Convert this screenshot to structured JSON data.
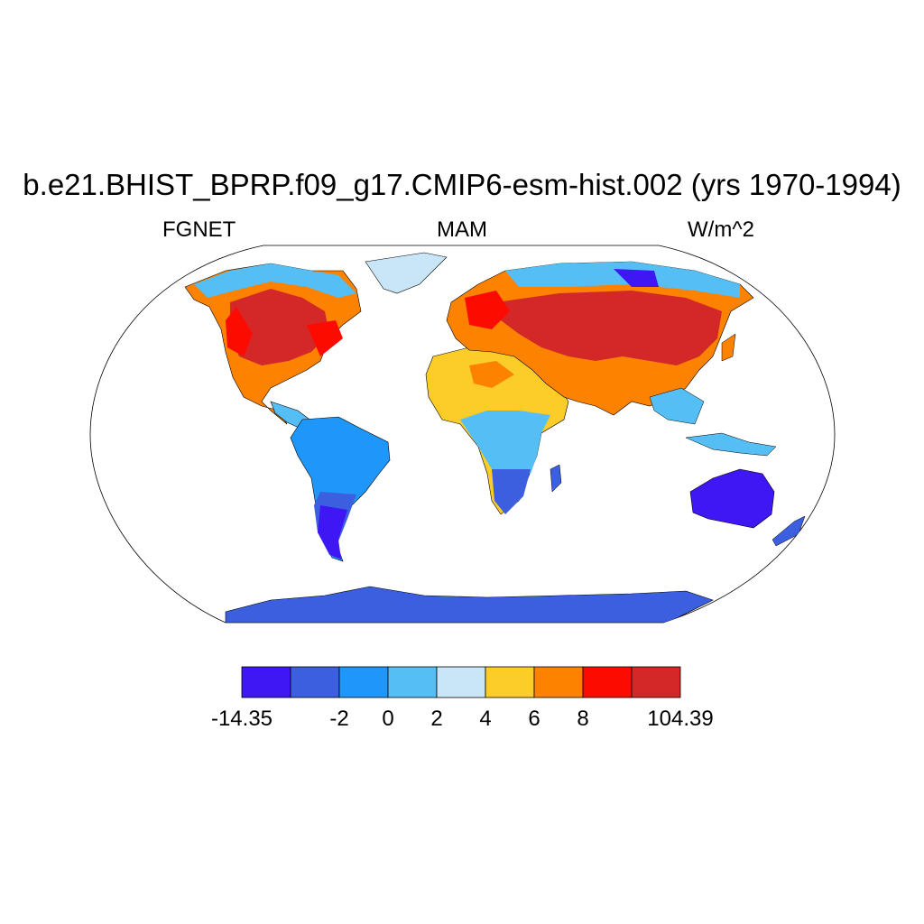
{
  "title": "b.e21.BHIST_BPRP.f09_g17.CMIP6-esm-hist.002 (yrs 1970-1994)",
  "subtitle_left": "FGNET",
  "subtitle_center": "MAM",
  "subtitle_right": "W/m^2",
  "colorbar": {
    "colors": [
      "#3f17f5",
      "#3c5fe0",
      "#1e96fa",
      "#55bef5",
      "#c8e6f8",
      "#fccc28",
      "#fc8200",
      "#fc0c00",
      "#d42828"
    ],
    "labels": [
      "-14.35",
      "-2",
      "0",
      "2",
      "4",
      "6",
      "8",
      "104.39"
    ]
  },
  "regions": [
    {
      "name": "North America",
      "colors": [
        "#fc0c00",
        "#d42828",
        "#fc8200"
      ]
    },
    {
      "name": "South America",
      "colors": [
        "#1e96fa",
        "#3c5fe0",
        "#3f17f5"
      ]
    },
    {
      "name": "Africa",
      "colors": [
        "#fccc28",
        "#55bef5",
        "#3c5fe0"
      ]
    },
    {
      "name": "Eurasia",
      "colors": [
        "#d42828",
        "#fc0c00",
        "#fc8200"
      ]
    },
    {
      "name": "Australia",
      "colors": [
        "#3f17f5"
      ]
    },
    {
      "name": "Antarctica",
      "colors": [
        "#3c5fe0"
      ]
    },
    {
      "name": "Greenland",
      "colors": [
        "#c8e6f8",
        "#55bef5"
      ]
    }
  ]
}
